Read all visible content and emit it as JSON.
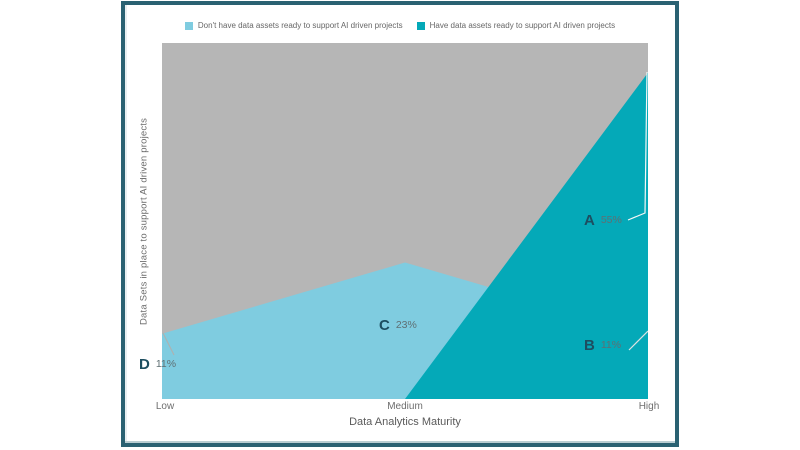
{
  "legend": {
    "items": [
      {
        "label": "Don't have data assets ready to support AI driven projects",
        "color": "#7fcce0"
      },
      {
        "label": "Have data assets ready to support AI driven projects",
        "color": "#04a9b8"
      }
    ]
  },
  "chart_data": {
    "type": "area",
    "categories": [
      "Low",
      "Medium",
      "High"
    ],
    "series": [
      {
        "name": "Don't have data assets ready to support AI driven projects",
        "values": [
          11,
          23,
          11
        ],
        "color": "#7fcce0"
      },
      {
        "name": "Have data assets ready to support AI driven projects",
        "values": [
          0,
          0,
          55
        ],
        "color": "#04a9b8"
      }
    ],
    "title": "",
    "xlabel": "Data Analytics Maturity",
    "ylabel": "Data Sets in place to support AI driven projects",
    "ylim": [
      0,
      60
    ],
    "grid": false,
    "legend_position": "top",
    "plot_bg_color": "#b6b6b6",
    "annotations": [
      {
        "label": "A",
        "value": "55%",
        "series": "Have data assets ready to support AI driven projects",
        "category": "High"
      },
      {
        "label": "B",
        "value": "11%",
        "series": "Don't have data assets ready to support AI driven projects",
        "category": "High"
      },
      {
        "label": "C",
        "value": "23%",
        "series": "Don't have data assets ready to support AI driven projects",
        "category": "Medium"
      },
      {
        "label": "D",
        "value": "11%",
        "series": "Don't have data assets ready to support AI driven projects",
        "category": "Low"
      }
    ]
  },
  "colors": {
    "frame": "#2a6172",
    "plot_background": "#b6b6b6",
    "annotation_letter": "#1d4e60",
    "annotation_value": "#5f6f73",
    "axis_text": "#6e6e6e"
  }
}
